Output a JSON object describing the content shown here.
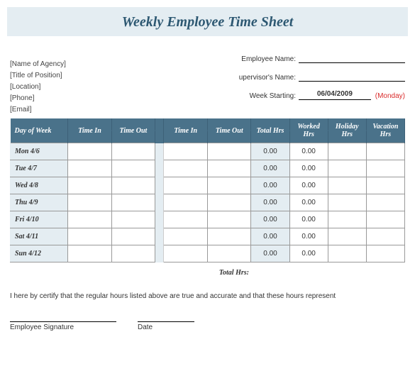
{
  "title": "Weekly Employee Time Sheet",
  "agency": {
    "name": "[Name of Agency]",
    "position": "[Title of Position]",
    "location": "[Location]",
    "phone": "[Phone]",
    "email": "[Email]"
  },
  "fields": {
    "employee_name_label": "Employee Name:",
    "supervisor_name_label": "upervisor's Name:",
    "week_starting_label": "Week Starting:",
    "week_starting_value": "06/04/2009",
    "week_day_note": "(Monday)"
  },
  "columns": {
    "day_of_week": "Day of Week",
    "time_in_1": "Time In",
    "time_out_1": "Time Out",
    "time_in_2": "Time In",
    "time_out_2": "Time Out",
    "total_hrs": "Total Hrs",
    "worked_hrs": "Worked Hrs",
    "holiday_hrs": "Holiday Hrs",
    "vacation_hrs": "Vacation Hrs"
  },
  "rows": [
    {
      "dow": "Mon 4/6",
      "total": "0.00",
      "worked": "0.00"
    },
    {
      "dow": "Tue 4/7",
      "total": "0.00",
      "worked": "0.00"
    },
    {
      "dow": "Wed 4/8",
      "total": "0.00",
      "worked": "0.00"
    },
    {
      "dow": "Thu 4/9",
      "total": "0.00",
      "worked": "0.00"
    },
    {
      "dow": "Fri 4/10",
      "total": "0.00",
      "worked": "0.00"
    },
    {
      "dow": "Sat 4/11",
      "total": "0.00",
      "worked": "0.00"
    },
    {
      "dow": "Sun 4/12",
      "total": "0.00",
      "worked": "0.00"
    }
  ],
  "total_hrs_label": "Total Hrs:",
  "cert_text": "I here by certify that the regular hours listed above are true and accurate and that these hours represent",
  "signature_label": "Employee Signature",
  "date_label": "Date",
  "colors": {
    "header_bg": "#4a728a",
    "pale_bg": "#e4edf2",
    "title_color": "#2d5872",
    "red": "#d92b2b"
  }
}
